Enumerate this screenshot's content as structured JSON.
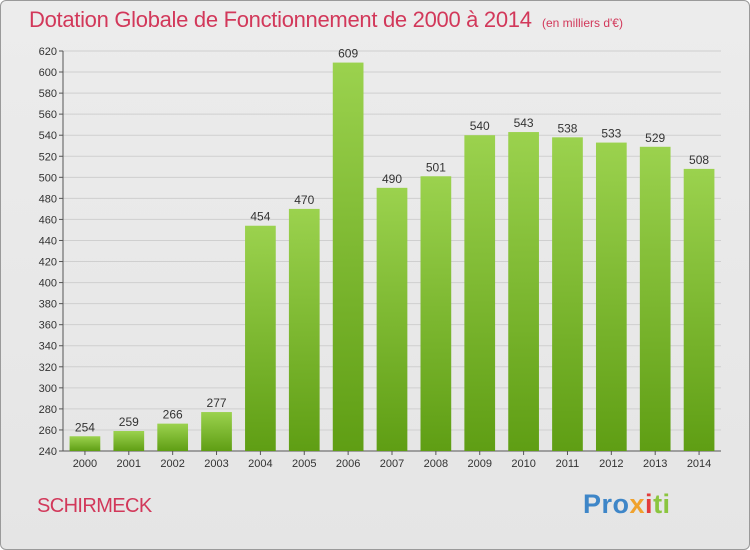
{
  "header": {
    "title": "Dotation Globale de Fonctionnement de 2000 à 2014",
    "subtitle": "(en milliers d'€)"
  },
  "footer": {
    "commune": "SCHIRMECK",
    "logo": [
      "Pro",
      "x",
      "i",
      "ti"
    ]
  },
  "colors": {
    "bar_light": "#9bd24e",
    "bar_dark": "#5f9e14",
    "title": "#d2385a",
    "grid": "#cfcfcf"
  },
  "chart_data": {
    "type": "bar",
    "categories": [
      "2000",
      "2001",
      "2002",
      "2003",
      "2004",
      "2005",
      "2006",
      "2007",
      "2008",
      "2009",
      "2010",
      "2011",
      "2012",
      "2013",
      "2014"
    ],
    "values": [
      254,
      259,
      266,
      277,
      454,
      470,
      609,
      490,
      501,
      540,
      543,
      538,
      533,
      529,
      508
    ],
    "title": "Dotation Globale de Fonctionnement de 2000 à 2014",
    "ylim": [
      240,
      620
    ],
    "yticks": [
      240,
      260,
      280,
      300,
      320,
      340,
      360,
      380,
      400,
      420,
      440,
      460,
      480,
      500,
      520,
      540,
      560,
      580,
      600,
      620
    ],
    "grid": true,
    "data_labels": true
  }
}
